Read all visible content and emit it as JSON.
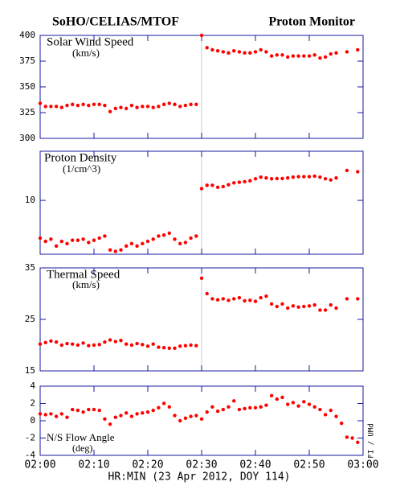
{
  "header": {
    "title_left": "SoHO/CELIAS/MTOF",
    "title_right": "Proton Monitor",
    "x_label": "HR:MIN (23 Apr 2012, DOY 114)",
    "credit": "FI / UMd",
    "marker_x": 30
  },
  "time_axis": {
    "xlim": [
      0,
      60
    ],
    "xticks": [
      {
        "value": 0,
        "label": "02:00"
      },
      {
        "value": 10,
        "label": "02:10"
      },
      {
        "value": 20,
        "label": "02:20"
      },
      {
        "value": 30,
        "label": "02:30"
      },
      {
        "value": 40,
        "label": "02:40"
      },
      {
        "value": 50,
        "label": "02:50"
      },
      {
        "value": 60,
        "label": "03:00"
      }
    ]
  },
  "chart_data": [
    {
      "type": "scatter",
      "title": "Solar Wind Speed",
      "subtitle": "(km/s)",
      "color": "#ff0000",
      "ylim": [
        300,
        400
      ],
      "yticks": [
        300,
        325,
        350,
        375,
        400
      ],
      "log_scale": false,
      "x": [
        0,
        1,
        2,
        3,
        4,
        5,
        6,
        7,
        8,
        9,
        10,
        11,
        12,
        13,
        14,
        15,
        16,
        17,
        18,
        19,
        20,
        21,
        22,
        23,
        24,
        25,
        26,
        27,
        28,
        29,
        30,
        31,
        32,
        33,
        34,
        35,
        36,
        37,
        38,
        39,
        40,
        41,
        42,
        43,
        44,
        45,
        46,
        47,
        48,
        49,
        50,
        51,
        52,
        53,
        54,
        55,
        56,
        57,
        58,
        59
      ],
      "values": [
        334,
        331,
        331,
        331,
        330,
        332,
        333,
        332,
        333,
        332,
        333,
        333,
        332,
        326,
        329,
        330,
        329,
        332,
        330,
        331,
        331,
        330,
        331,
        333,
        334,
        333,
        331,
        332,
        333,
        333,
        400,
        388,
        386,
        385,
        384,
        383,
        385,
        384,
        383,
        383,
        384,
        386,
        384,
        380,
        381,
        381,
        379,
        380,
        380,
        380,
        380,
        381,
        378,
        379,
        382,
        383,
        null,
        384,
        null,
        386
      ]
    },
    {
      "type": "scatter",
      "title": "Proton Density",
      "subtitle": "(1/cm^3)",
      "color": "#ff0000",
      "ylim": [
        3,
        30
      ],
      "yticks": [
        10
      ],
      "log_scale": true,
      "x": [
        0,
        1,
        2,
        3,
        4,
        5,
        6,
        7,
        8,
        9,
        10,
        11,
        12,
        13,
        14,
        15,
        16,
        17,
        18,
        19,
        20,
        21,
        22,
        23,
        24,
        25,
        26,
        27,
        28,
        29,
        30,
        31,
        32,
        33,
        34,
        35,
        36,
        37,
        38,
        39,
        40,
        41,
        42,
        43,
        44,
        45,
        46,
        47,
        48,
        49,
        50,
        51,
        52,
        53,
        54,
        55,
        56,
        57,
        58,
        59
      ],
      "values": [
        4.3,
        4.0,
        4.2,
        3.6,
        4.0,
        3.8,
        4.1,
        4.1,
        4.2,
        3.9,
        4.1,
        4.3,
        4.5,
        3.3,
        3.2,
        3.3,
        3.6,
        3.8,
        3.6,
        3.8,
        4.0,
        4.2,
        4.5,
        4.6,
        4.8,
        4.2,
        3.8,
        3.9,
        4.3,
        4.5,
        13.0,
        14.0,
        14.0,
        13.4,
        13.6,
        14.2,
        14.8,
        15.0,
        15.2,
        15.5,
        16.2,
        16.8,
        16.5,
        16.2,
        16.3,
        16.3,
        16.5,
        16.8,
        17.0,
        17.0,
        17.0,
        17.2,
        16.8,
        16.2,
        15.8,
        16.5,
        null,
        19.5,
        null,
        19.0
      ]
    },
    {
      "type": "scatter",
      "title": "Thermal Speed",
      "subtitle": "(km/s)",
      "color": "#ff0000",
      "ylim": [
        15,
        35
      ],
      "yticks": [
        15,
        25,
        35
      ],
      "log_scale": false,
      "x": [
        0,
        1,
        2,
        3,
        4,
        5,
        6,
        7,
        8,
        9,
        10,
        11,
        12,
        13,
        14,
        15,
        16,
        17,
        18,
        19,
        20,
        21,
        22,
        23,
        24,
        25,
        26,
        27,
        28,
        29,
        30,
        31,
        32,
        33,
        34,
        35,
        36,
        37,
        38,
        39,
        40,
        41,
        42,
        43,
        44,
        45,
        46,
        47,
        48,
        49,
        50,
        51,
        52,
        53,
        54,
        55,
        56,
        57,
        58,
        59
      ],
      "values": [
        20.2,
        20.5,
        20.8,
        20.6,
        20.0,
        20.3,
        20.2,
        20.0,
        20.4,
        19.9,
        20.0,
        20.1,
        20.6,
        21.0,
        20.7,
        20.9,
        20.2,
        20.0,
        20.3,
        20.1,
        19.8,
        20.2,
        19.6,
        19.5,
        19.4,
        19.4,
        19.8,
        19.9,
        20.0,
        19.9,
        33.0,
        30.0,
        29.0,
        28.8,
        29.0,
        28.7,
        29.0,
        29.2,
        28.6,
        28.7,
        28.5,
        29.2,
        29.5,
        28.0,
        27.5,
        28.0,
        27.2,
        27.6,
        27.4,
        27.5,
        27.6,
        27.8,
        26.8,
        26.8,
        27.8,
        27.2,
        null,
        29.0,
        null,
        29.0
      ]
    },
    {
      "type": "scatter",
      "title": "N/S Flow Angle",
      "subtitle": "(deg)",
      "color": "#ff0000",
      "ylim": [
        -4,
        4
      ],
      "yticks": [
        -4,
        -2,
        0,
        2,
        4
      ],
      "log_scale": false,
      "x": [
        0,
        1,
        2,
        3,
        4,
        5,
        6,
        7,
        8,
        9,
        10,
        11,
        12,
        13,
        14,
        15,
        16,
        17,
        18,
        19,
        20,
        21,
        22,
        23,
        24,
        25,
        26,
        27,
        28,
        29,
        30,
        31,
        32,
        33,
        34,
        35,
        36,
        37,
        38,
        39,
        40,
        41,
        42,
        43,
        44,
        45,
        46,
        47,
        48,
        49,
        50,
        51,
        52,
        53,
        54,
        55,
        56,
        57,
        58,
        59
      ],
      "values": [
        0.8,
        0.7,
        0.8,
        0.5,
        0.8,
        0.4,
        1.3,
        1.2,
        1.0,
        1.3,
        1.3,
        1.2,
        0.2,
        -0.4,
        0.4,
        0.6,
        0.9,
        0.5,
        0.8,
        0.9,
        1.0,
        1.2,
        1.5,
        2.0,
        1.6,
        0.6,
        0.0,
        0.3,
        0.5,
        0.6,
        0.2,
        1.0,
        1.6,
        1.1,
        1.3,
        1.6,
        2.3,
        1.3,
        1.4,
        1.5,
        1.5,
        1.6,
        1.8,
        2.9,
        2.5,
        2.7,
        1.9,
        2.1,
        1.7,
        2.2,
        1.9,
        1.6,
        1.3,
        0.7,
        1.2,
        0.5,
        -0.3,
        -1.9,
        -2.0,
        -2.5
      ]
    }
  ]
}
